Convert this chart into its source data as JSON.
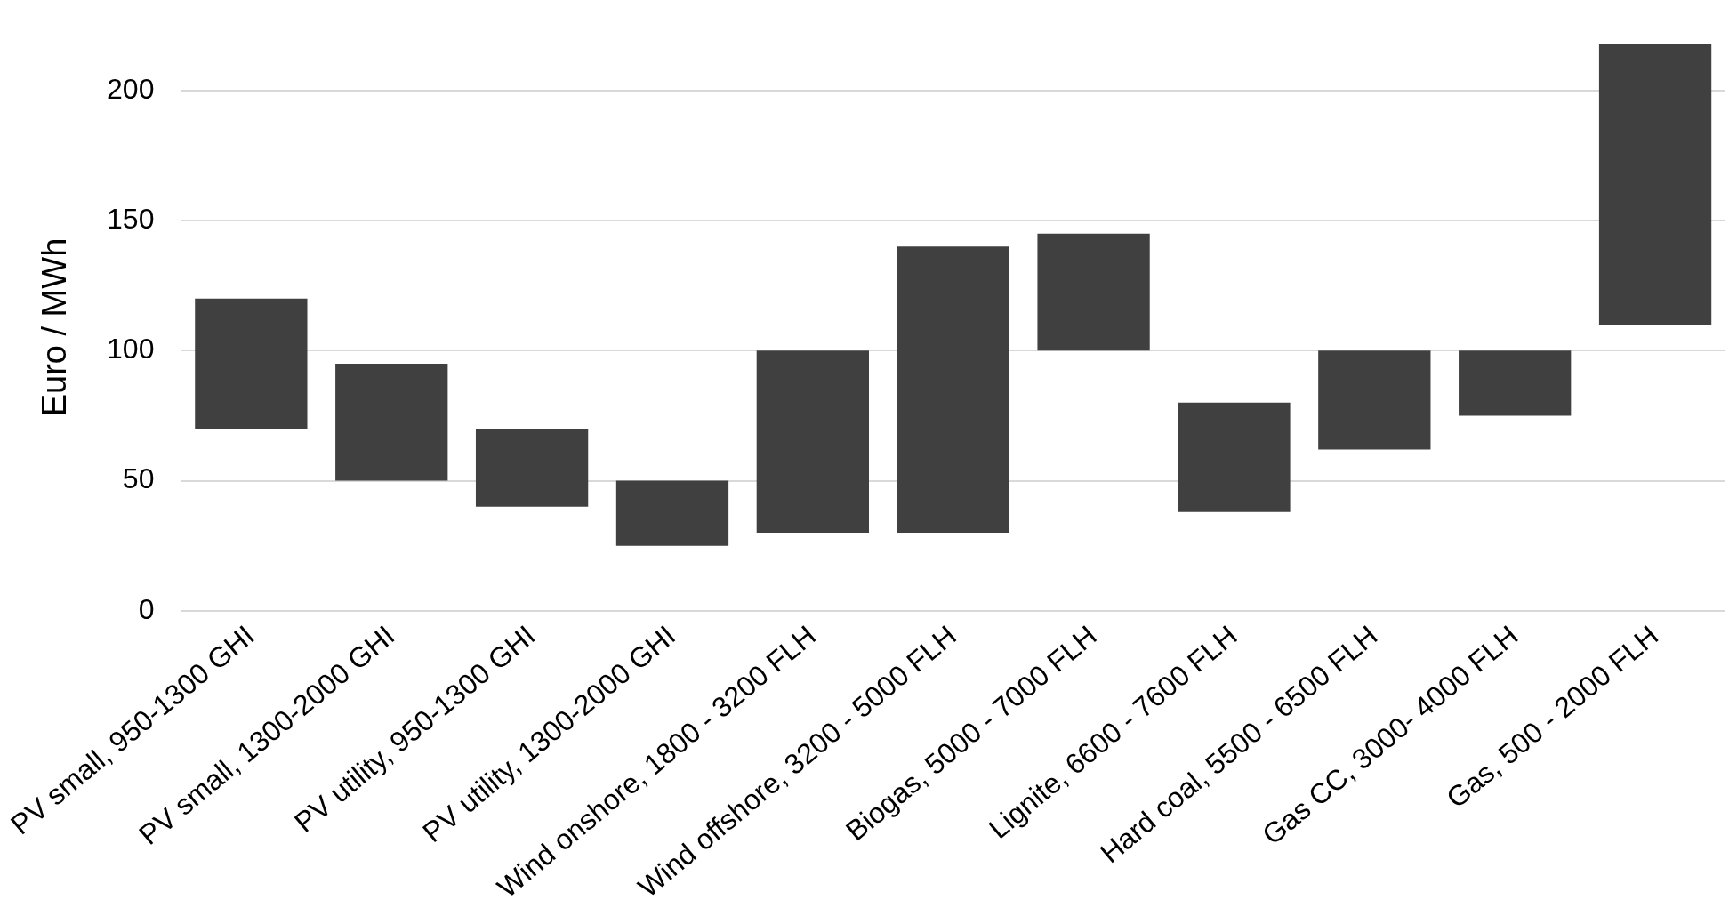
{
  "chart_data": {
    "type": "bar",
    "ylabel": "Euro / MWh",
    "categories": [
      "PV small, 950-1300 GHI",
      "PV small, 1300-2000 GHI",
      "PV utility, 950-1300 GHI",
      "PV utility, 1300-2000 GHI",
      "Wind onshore, 1800 - 3200 FLH",
      "Wind offshore, 3200 - 5000 FLH",
      "Biogas, 5000 - 7000 FLH",
      "Lignite, 6600 - 7600 FLH",
      "Hard coal, 5500 - 6500 FLH",
      "Gas CC, 3000- 4000 FLH",
      "Gas, 500 - 2000 FLH"
    ],
    "base": [
      70,
      50,
      40,
      25,
      30,
      30,
      100,
      38,
      62,
      75,
      110
    ],
    "values": [
      50,
      45,
      30,
      25,
      70,
      110,
      45,
      42,
      38,
      25,
      108
    ],
    "color": "#404040",
    "ylim": [
      0,
      218
    ],
    "yticks": [
      0,
      50,
      100,
      150,
      200
    ],
    "grid": "y",
    "legend": false
  }
}
